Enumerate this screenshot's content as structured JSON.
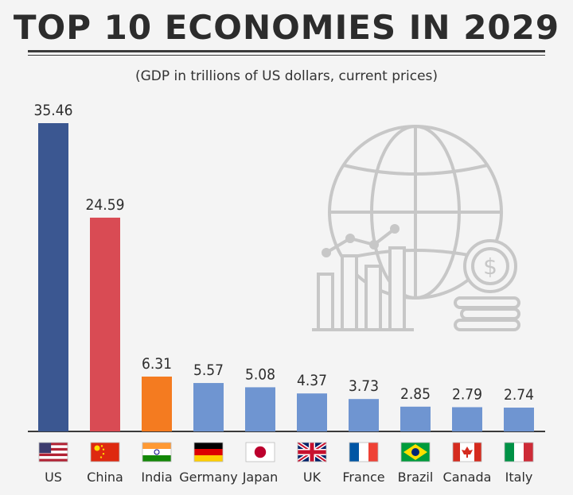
{
  "header": {
    "title": "TOP 10 ECONOMIES IN 2029",
    "subtitle": "(GDP in trillions of US dollars, current prices)"
  },
  "colors": {
    "us": "#3b5791",
    "china": "#d94b54",
    "india": "#f47b20",
    "others": "#6f95d1",
    "background": "#f4f4f4",
    "icon": "#c7c7c7"
  },
  "icons": [
    "globe-icon",
    "bar-chart-icon",
    "dollar-coin-icon"
  ],
  "chart_data": {
    "type": "bar",
    "title": "TOP 10 ECONOMIES IN 2029",
    "subtitle": "(GDP in trillions of US dollars, current prices)",
    "categories": [
      "US",
      "China",
      "India",
      "Germany",
      "Japan",
      "UK",
      "France",
      "Brazil",
      "Canada",
      "Italy"
    ],
    "values": [
      35.46,
      24.59,
      6.31,
      5.57,
      5.08,
      4.37,
      3.73,
      2.85,
      2.79,
      2.74
    ],
    "value_labels": [
      "35.46",
      "24.59",
      "6.31",
      "5.57",
      "5.08",
      "4.37",
      "3.73",
      "2.85",
      "2.79",
      "2.74"
    ],
    "bar_colors": [
      "#3b5791",
      "#d94b54",
      "#f47b20",
      "#6f95d1",
      "#6f95d1",
      "#6f95d1",
      "#6f95d1",
      "#6f95d1",
      "#6f95d1",
      "#6f95d1"
    ],
    "flags": [
      "us-flag-icon",
      "china-flag-icon",
      "india-flag-icon",
      "germany-flag-icon",
      "japan-flag-icon",
      "uk-flag-icon",
      "france-flag-icon",
      "brazil-flag-icon",
      "canada-flag-icon",
      "italy-flag-icon"
    ],
    "ylim": [
      0,
      35.46
    ],
    "grid": false,
    "legend": "none"
  }
}
